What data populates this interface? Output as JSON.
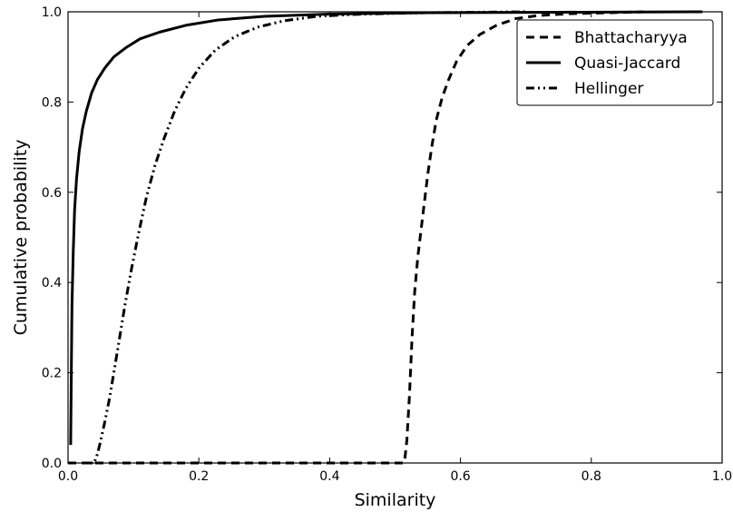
{
  "chart_data": {
    "type": "line",
    "title": "",
    "xlabel": "Similarity",
    "ylabel": "Cumulative probability",
    "xlim": [
      0.0,
      1.0
    ],
    "ylim": [
      0.0,
      1.0
    ],
    "x_ticks": [
      "0.0",
      "0.2",
      "0.4",
      "0.6",
      "0.8",
      "1.0"
    ],
    "y_ticks": [
      "0.0",
      "0.2",
      "0.4",
      "0.6",
      "0.8",
      "1.0"
    ],
    "grid": false,
    "legend_position": "top-right",
    "series": [
      {
        "name": "Bhattacharyya",
        "style": "dashed",
        "color": "#000000",
        "x": [
          0.0,
          0.513,
          0.515,
          0.518,
          0.522,
          0.526,
          0.53,
          0.535,
          0.54,
          0.545,
          0.55,
          0.556,
          0.563,
          0.572,
          0.582,
          0.594,
          0.61,
          0.63,
          0.655,
          0.685,
          0.72,
          0.77,
          0.83,
          0.88
        ],
        "y": [
          0.0,
          0.0,
          0.01,
          0.05,
          0.15,
          0.28,
          0.38,
          0.46,
          0.52,
          0.58,
          0.64,
          0.7,
          0.76,
          0.81,
          0.85,
          0.89,
          0.925,
          0.95,
          0.97,
          0.985,
          0.992,
          0.996,
          0.998,
          1.0
        ]
      },
      {
        "name": "Quasi-Jaccard",
        "style": "solid",
        "color": "#000000",
        "x": [
          0.004,
          0.005,
          0.006,
          0.008,
          0.01,
          0.013,
          0.017,
          0.022,
          0.028,
          0.036,
          0.045,
          0.056,
          0.07,
          0.088,
          0.11,
          0.14,
          0.18,
          0.23,
          0.3,
          0.4,
          0.55,
          0.75,
          0.97
        ],
        "y": [
          0.04,
          0.2,
          0.35,
          0.47,
          0.56,
          0.63,
          0.69,
          0.74,
          0.78,
          0.82,
          0.85,
          0.875,
          0.9,
          0.92,
          0.94,
          0.955,
          0.97,
          0.982,
          0.99,
          0.995,
          0.998,
          0.999,
          1.0
        ]
      },
      {
        "name": "Hellinger",
        "style": "dashdot",
        "color": "#000000",
        "x": [
          0.025,
          0.04,
          0.045,
          0.05,
          0.056,
          0.063,
          0.07,
          0.078,
          0.087,
          0.097,
          0.108,
          0.12,
          0.133,
          0.147,
          0.163,
          0.18,
          0.2,
          0.225,
          0.255,
          0.29,
          0.33,
          0.38,
          0.45,
          0.55,
          0.7
        ],
        "y": [
          0.0,
          0.0,
          0.02,
          0.05,
          0.09,
          0.14,
          0.2,
          0.27,
          0.35,
          0.43,
          0.51,
          0.59,
          0.66,
          0.72,
          0.78,
          0.83,
          0.875,
          0.915,
          0.945,
          0.966,
          0.98,
          0.99,
          0.995,
          0.998,
          1.0
        ]
      }
    ]
  }
}
